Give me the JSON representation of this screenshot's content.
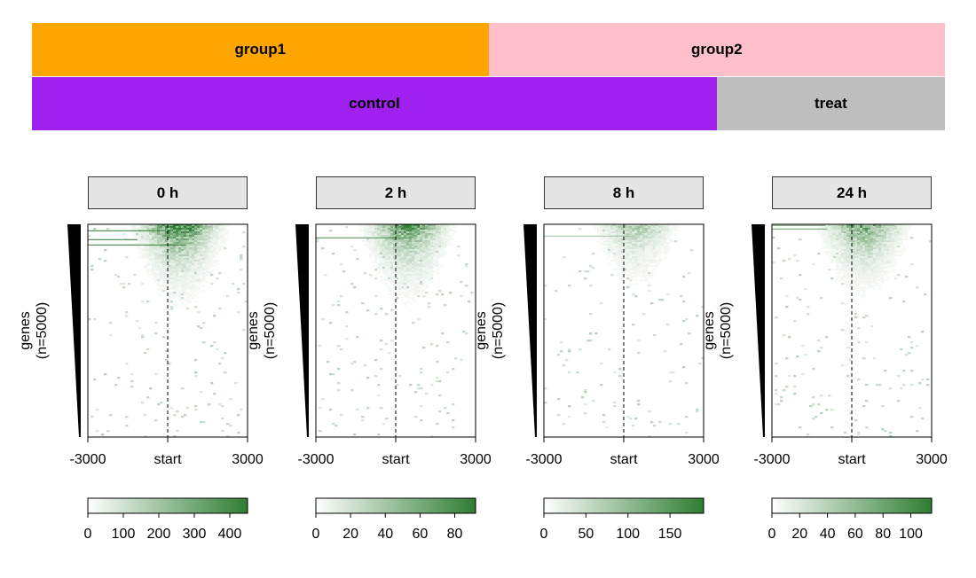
{
  "annotation_rows": [
    {
      "segments": [
        {
          "label": "group1",
          "color": "#FFA500",
          "span": 2
        },
        {
          "label": "group2",
          "color": "#FFC0CB",
          "span": 2
        }
      ]
    },
    {
      "segments": [
        {
          "label": "control",
          "color": "#A020F0",
          "span": 3
        },
        {
          "label": "treat",
          "color": "#BEBEBE",
          "span": 1
        }
      ]
    }
  ],
  "chart_data": [
    {
      "type": "heatmap",
      "title": "0 h",
      "ylabel": "genes\n(n=5000)",
      "x_ticks": [
        "-3000",
        "start",
        "3000"
      ],
      "xlim": [
        -3000,
        3000
      ],
      "reference_line": "start",
      "color_low": "#FFFFFF",
      "color_high": "#2E7D32",
      "legend_ticks": [
        0,
        100,
        200,
        300,
        400
      ],
      "legend_range": [
        0,
        450
      ],
      "signal_intensity": 1.0
    },
    {
      "type": "heatmap",
      "title": "2 h",
      "ylabel": "genes\n(n=5000)",
      "x_ticks": [
        "-3000",
        "start",
        "3000"
      ],
      "xlim": [
        -3000,
        3000
      ],
      "reference_line": "start",
      "color_low": "#FFFFFF",
      "color_high": "#2E7D32",
      "legend_ticks": [
        0,
        20,
        40,
        60,
        80
      ],
      "legend_range": [
        0,
        92
      ],
      "signal_intensity": 0.85
    },
    {
      "type": "heatmap",
      "title": "8 h",
      "ylabel": "genes\n(n=5000)",
      "x_ticks": [
        "-3000",
        "start",
        "3000"
      ],
      "xlim": [
        -3000,
        3000
      ],
      "reference_line": "start",
      "color_low": "#FFFFFF",
      "color_high": "#2E7D32",
      "legend_ticks": [
        0,
        50,
        100,
        150
      ],
      "legend_range": [
        0,
        190
      ],
      "signal_intensity": 0.4
    },
    {
      "type": "heatmap",
      "title": "24 h",
      "ylabel": "genes\n(n=5000)",
      "x_ticks": [
        "-3000",
        "start",
        "3000"
      ],
      "xlim": [
        -3000,
        3000
      ],
      "reference_line": "start",
      "color_low": "#FFFFFF",
      "color_high": "#2E7D32",
      "legend_ticks": [
        0,
        20,
        40,
        60,
        80,
        100
      ],
      "legend_range": [
        0,
        115
      ],
      "signal_intensity": 0.7
    }
  ]
}
